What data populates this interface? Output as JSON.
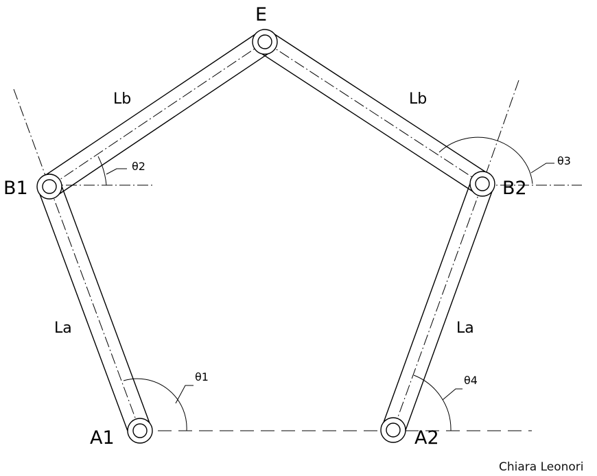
{
  "labels": {
    "E": "E",
    "B1": "B1",
    "B2": "B2",
    "A1": "A1",
    "A2": "A2",
    "Lb_left": "Lb",
    "Lb_right": "Lb",
    "La_left": "La",
    "La_right": "La",
    "theta1": "θ1",
    "theta2": "θ2",
    "theta3": "θ3",
    "theta4": "θ4"
  },
  "credit": "Chiara Leonori"
}
